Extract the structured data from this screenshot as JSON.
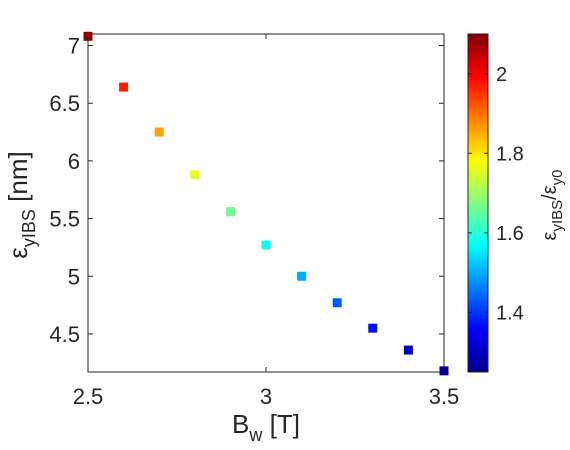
{
  "chart_data": {
    "type": "scatter",
    "title": "",
    "xlabel": "B_w [T]",
    "ylabel": "ε_yIBS [nm]",
    "xlabel_parts": {
      "main": "B",
      "sub": "w",
      "rest": " [T]"
    },
    "ylabel_parts": {
      "symbol": "ε",
      "sub": "yIBS",
      "rest": " [nm]"
    },
    "colorbar_label": "ε_yIBS/ε_y0",
    "colorbar_label_parts": {
      "sym1": "ε",
      "sub1": "yIBS",
      "slash": "/",
      "sym2": "ε",
      "sub2": "y0"
    },
    "xlim": [
      2.5,
      3.5
    ],
    "ylim": [
      4.17,
      7.1
    ],
    "xticks": [
      2.5,
      3,
      3.5
    ],
    "xtick_labels": [
      "2.5",
      "3",
      "3.5"
    ],
    "yticks": [
      4.5,
      5,
      5.5,
      6,
      6.5,
      7
    ],
    "ytick_labels": [
      "4.5",
      "5",
      "5.5",
      "6",
      "6.5",
      "7"
    ],
    "colorbar": {
      "colormap": "jet",
      "clim": [
        1.25,
        2.1
      ],
      "ticks": [
        1.4,
        1.6,
        1.8,
        2.0
      ],
      "tick_labels": [
        "1.4",
        "1.6",
        "1.8",
        "2"
      ]
    },
    "grid": false,
    "points": [
      {
        "x": 2.5,
        "y": 7.08,
        "c": 2.09
      },
      {
        "x": 2.6,
        "y": 6.64,
        "c": 1.97
      },
      {
        "x": 2.7,
        "y": 6.25,
        "c": 1.86
      },
      {
        "x": 2.8,
        "y": 5.88,
        "c": 1.76
      },
      {
        "x": 2.9,
        "y": 5.56,
        "c": 1.66
      },
      {
        "x": 3.0,
        "y": 5.27,
        "c": 1.58
      },
      {
        "x": 3.1,
        "y": 5.0,
        "c": 1.5
      },
      {
        "x": 3.2,
        "y": 4.77,
        "c": 1.43
      },
      {
        "x": 3.3,
        "y": 4.55,
        "c": 1.37
      },
      {
        "x": 3.4,
        "y": 4.36,
        "c": 1.31
      },
      {
        "x": 3.5,
        "y": 4.18,
        "c": 1.26
      }
    ]
  }
}
